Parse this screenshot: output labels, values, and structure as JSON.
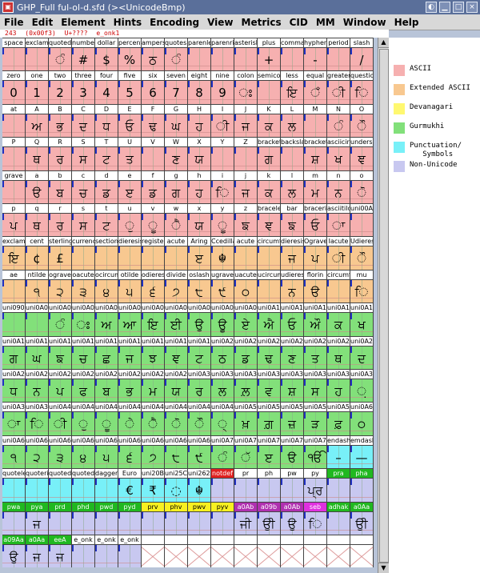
{
  "window": {
    "title": "GHP_Full  ful-ol-d.sfd (><UnicodeBmp)"
  },
  "menu": [
    "File",
    "Edit",
    "Element",
    "Hints",
    "Encoding",
    "View",
    "Metrics",
    "CID",
    "MM",
    "Window",
    "Help"
  ],
  "info": {
    "code": "243",
    "hex": "(0x00f3)",
    "unicode": "U+????",
    "name": "e_onk1"
  },
  "colors": {
    "ascii": "#f6b0b0",
    "extended": "#f8c890",
    "devanagari": "#fff870",
    "gurmukhi": "#82e07a",
    "punct": "#78f0f8",
    "nonunicode": "#c8c8f0",
    "red": "#e02020",
    "green": "#20b820",
    "purple": "#b030b0",
    "magenta": "#e030e0",
    "yellow": "#f8f020",
    "blue": "#2020c0",
    "pink": "#f0a0c0",
    "white": "#ffffff"
  },
  "legend": [
    {
      "label": "ASCII",
      "color": "ascii"
    },
    {
      "label": "Extended ASCII",
      "color": "extended"
    },
    {
      "label": "Devanagari",
      "color": "devanagari"
    },
    {
      "label": "Gurmukhi",
      "color": "gurmukhi"
    },
    {
      "label": "Punctuation/\n   Symbols",
      "color": "punct"
    },
    {
      "label": "Non-Unicode",
      "color": "nonunicode"
    }
  ],
  "grid": {
    "rows": [
      {
        "bg": "ascii",
        "labels": [
          "space",
          "exclam",
          "quotedbl",
          "numbersign",
          "dollar",
          "percent",
          "ampersand",
          "quotesingle",
          "parenleft",
          "parenright",
          "asterisk",
          "plus",
          "comma",
          "hyphen",
          "period",
          "slash"
        ],
        "glyphs": [
          "",
          "",
          "ੰ",
          "#",
          "$",
          "%",
          "ਠ",
          "ੰ",
          "",
          "",
          "",
          "+",
          "",
          "-",
          "",
          "/"
        ]
      },
      {
        "bg": "ascii",
        "labels": [
          "zero",
          "one",
          "two",
          "three",
          "four",
          "five",
          "six",
          "seven",
          "eight",
          "nine",
          "colon",
          "semicolon",
          "less",
          "equal",
          "greater",
          "question"
        ],
        "glyphs": [
          "0",
          "1",
          "2",
          "3",
          "4",
          "5",
          "6",
          "7",
          "8",
          "9",
          "ਃ",
          "",
          "ਇ",
          "ਁ",
          "ੀ",
          "ਿ"
        ]
      },
      {
        "bg": "ascii",
        "labels": [
          "at",
          "A",
          "B",
          "C",
          "D",
          "E",
          "F",
          "G",
          "H",
          "I",
          "J",
          "K",
          "L",
          "M",
          "N",
          "O"
        ],
        "glyphs": [
          "",
          "ਅ",
          "ਭ",
          "ਦ",
          "ਧ",
          "ਓ",
          "ਢ",
          "ਘ",
          "ਹ",
          "ੀ",
          "ਜ",
          "ਕ",
          "ਲ",
          "",
          "ੰ",
          "ੌ"
        ]
      },
      {
        "bg": "ascii",
        "labels": [
          "P",
          "Q",
          "R",
          "S",
          "T",
          "U",
          "V",
          "W",
          "X",
          "Y",
          "Z",
          "bracketleft",
          "backslash",
          "bracketright",
          "asciicircum",
          "underscore"
        ],
        "glyphs": [
          "",
          "ਥ",
          "ਰ",
          "ਸ",
          "ਟ",
          "ਤ",
          "",
          "ਣ",
          "ਯ",
          "",
          "",
          "ਗ",
          "",
          "ਸ਼",
          "ਖ",
          "ਞ"
        ]
      },
      {
        "bg": "ascii",
        "labels": [
          "grave",
          "a",
          "b",
          "c",
          "d",
          "e",
          "f",
          "g",
          "h",
          "i",
          "j",
          "k",
          "l",
          "m",
          "n",
          "o"
        ],
        "glyphs": [
          "",
          "ੳ",
          "ਬ",
          "ਚ",
          "ਡ",
          "ੲ",
          "ਡ",
          "ਗ",
          "ਹ",
          "ਿ",
          "ਜ",
          "ਕ",
          "ਲ",
          "ਮ",
          "ਨ",
          "ੋ"
        ]
      },
      {
        "bg": "ascii",
        "labels": [
          "p",
          "q",
          "r",
          "s",
          "t",
          "u",
          "v",
          "w",
          "x",
          "y",
          "z",
          "braceleft",
          "bar",
          "braceright",
          "asciitilde",
          "uni00A0"
        ],
        "glyphs": [
          "ਪ",
          "ਥ",
          "ਰ",
          "ਸ",
          "ਟ",
          "ੁ",
          "ੂ",
          "ੈ",
          "ਯ",
          "ੂ",
          "ਙ",
          "ਞ",
          "ਙ",
          "ਓ",
          "ਾ",
          ""
        ]
      },
      {
        "bg": "extended",
        "labels": [
          "exclamdown",
          "cent",
          "sterling",
          "currency",
          "section",
          "dieresis",
          "registered",
          "acute",
          "Aring",
          "Ccedilla",
          "acute",
          "circumflex",
          "dieresis",
          "Ograve",
          "Iacute",
          "Udieresis"
        ],
        "glyphs": [
          "ਇ",
          "¢",
          "£",
          "",
          "",
          "",
          "",
          "",
          "ੲ",
          "☬",
          "",
          "",
          "ਜ",
          "ਪ",
          "ੀ",
          "ੌ"
        ]
      },
      {
        "bg": "extended",
        "labels": [
          "ae",
          "ntilde",
          "ograve",
          "oacute",
          "ocircumflex",
          "otilde",
          "odieresis",
          "divide",
          "oslash",
          "ugrave",
          "uacute",
          "ucircumflex",
          "udieresis",
          "florin",
          "circumflex",
          "mu"
        ],
        "glyphs": [
          "",
          "੧",
          "੨",
          "੩",
          "੪",
          "੫",
          "੬",
          "੭",
          "੮",
          "੯",
          "੦",
          "",
          "ਨ",
          "ੳ",
          "",
          "ਿ"
        ]
      },
      {
        "bg": "gurmukhi",
        "labels": [
          "uni0901",
          "uni0A01",
          "uni0A02",
          "uni0A03",
          "uni0A05",
          "uni0A06",
          "uni0A07",
          "uni0A08",
          "uni0A09",
          "uni0A0A",
          "uni0A0F",
          "uni0A10",
          "uni0A13",
          "uni0A14",
          "uni0A15",
          "uni0A16"
        ],
        "glyphs": [
          "",
          "",
          "ੰ",
          "ਃ",
          "ਅ",
          "ਆ",
          "ਇ",
          "ਈ",
          "ਉ",
          "ਊ",
          "ਏ",
          "ਐ",
          "ਓ",
          "ਔ",
          "ਕ",
          "ਖ"
        ]
      },
      {
        "bg": "gurmukhi",
        "labels": [
          "uni0A17",
          "uni0A18",
          "uni0A19",
          "uni0A1A",
          "uni0A1B",
          "uni0A1C",
          "uni0A1D",
          "uni0A1E",
          "uni0A1F",
          "uni0A20",
          "uni0A21",
          "uni0A22",
          "uni0A23",
          "uni0A24",
          "uni0A25",
          "uni0A26"
        ],
        "glyphs": [
          "ਗ",
          "ਘ",
          "ਙ",
          "ਚ",
          "ਛ",
          "ਜ",
          "ਝ",
          "ਞ",
          "ਟ",
          "ਠ",
          "ਡ",
          "ਢ",
          "ਣ",
          "ਤ",
          "ਥ",
          "ਦ"
        ]
      },
      {
        "bg": "gurmukhi",
        "labels": [
          "uni0A27",
          "uni0A28",
          "uni0A2A",
          "uni0A2B",
          "uni0A2C",
          "uni0A2D",
          "uni0A2E",
          "uni0A2F",
          "uni0A30",
          "uni0A32",
          "uni0A33",
          "uni0A35",
          "uni0A36",
          "uni0A38",
          "uni0A39",
          "uni0A3C"
        ],
        "glyphs": [
          "ਧ",
          "ਨ",
          "ਪ",
          "ਫ",
          "ਬ",
          "ਭ",
          "ਮ",
          "ਯ",
          "ਰ",
          "ਲ",
          "ਲ਼",
          "ਵ",
          "ਸ਼",
          "ਸ",
          "ਹ",
          "਼"
        ]
      },
      {
        "bg": "gurmukhi",
        "labels": [
          "uni0A3E",
          "uni0A3F",
          "uni0A40",
          "uni0A41",
          "uni0A42",
          "uni0A47",
          "uni0A48",
          "uni0A4B",
          "uni0A4C",
          "uni0A4D",
          "uni0A59",
          "uni0A5A",
          "uni0A5B",
          "uni0A5C",
          "uni0A5E",
          "uni0A66"
        ],
        "glyphs": [
          "ਾ",
          "ਿ",
          "ੀ",
          "ੁ",
          "ੂ",
          "ੇ",
          "ੈ",
          "ੋ",
          "ੌ",
          "੍",
          "ਖ਼",
          "ਗ਼",
          "ਜ਼",
          "ੜ",
          "ਫ਼",
          "੦"
        ]
      },
      {
        "bg": "gurmukhi",
        "labels": [
          "uni0A67",
          "uni0A68",
          "uni0A69",
          "uni0A6A",
          "uni0A6B",
          "uni0A6C",
          "uni0A6D",
          "uni0A6E",
          "uni0A6F",
          "uni0A70",
          "uni0A71",
          "uni0A72",
          "uni0A73",
          "uni0A74",
          "endash",
          "emdash"
        ],
        "glyphs": [
          "੧",
          "੨",
          "੩",
          "੪",
          "੫",
          "੬",
          "੭",
          "੮",
          "੯",
          "ੰ",
          "ੱ",
          "ੲ",
          "ੳ",
          "ੴ",
          "–",
          "—"
        ],
        "bgOverride": {
          "14": "punct",
          "15": "punct"
        }
      },
      {
        "bg": "punct",
        "labels": [
          "quoteleft",
          "quoteright",
          "quotedblleft",
          "quotedblright",
          "dagger",
          "Euro",
          "uni20B9",
          "uni25CC",
          "uni262C",
          "notdef",
          "pr",
          "ph",
          "pw",
          "py",
          "pra",
          "pha"
        ],
        "glyphs": [
          "",
          "",
          "",
          "",
          "",
          "€",
          "₹",
          "◌",
          "☬",
          "",
          "",
          "",
          "",
          "ਪ੍ਰ",
          "",
          ""
        ],
        "labelBg": {
          "9": "red",
          "10": "white",
          "11": "white",
          "12": "white",
          "13": "white",
          "14": "green",
          "15": "green"
        },
        "bgOverride": {
          "9": "nonunicode",
          "10": "nonunicode",
          "11": "nonunicode",
          "12": "nonunicode",
          "13": "nonunicode",
          "14": "nonunicode",
          "15": "nonunicode"
        }
      },
      {
        "bg": "nonunicode",
        "labels": [
          "pwa",
          "pya",
          "prd",
          "phd",
          "pwd",
          "pyd",
          "prv",
          "phv",
          "pwv",
          "pyv",
          "a0Ab",
          "a09b",
          "a0Ab",
          "seb",
          "adhak",
          "a0Aa"
        ],
        "glyphs": [
          "",
          "ਜ",
          "",
          "",
          "",
          "",
          "",
          "",
          "",
          "",
          "ਜੀ",
          "ਉੀ",
          "ਉ",
          "ਿ",
          "",
          "ਉੀ"
        ],
        "labelBg": {
          "0": "green",
          "1": "green",
          "2": "green",
          "3": "green",
          "4": "green",
          "5": "green",
          "6": "yellow",
          "7": "yellow",
          "8": "yellow",
          "9": "yellow",
          "10": "purple",
          "11": "purple",
          "12": "purple",
          "13": "magenta",
          "14": "green",
          "15": "green"
        }
      },
      {
        "bg": "nonunicode",
        "labels": [
          "a09Aa",
          "a0Aa",
          "eeA",
          "e_onk",
          "e_onk",
          "e_onk",
          "",
          "",
          "",
          "",
          "",
          "",
          "",
          "",
          "",
          ""
        ],
        "glyphs": [
          "ਉ",
          "ਜ",
          "ਜ",
          "",
          "",
          "",
          "",
          "",
          "",
          "",
          "",
          "",
          "",
          "",
          "",
          ""
        ],
        "labelBg": {
          "0": "green",
          "1": "green",
          "2": "green"
        },
        "emptyFrom": 6
      }
    ]
  }
}
